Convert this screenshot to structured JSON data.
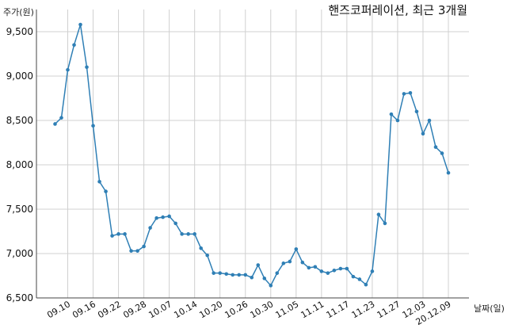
{
  "chart_data": {
    "type": "line",
    "title": "핸즈코퍼레이션, 최근 3개월",
    "ylabel": "주가(원)",
    "xlabel": "날짜(일)",
    "ylim": [
      6500,
      9750
    ],
    "yticks": [
      6500,
      7000,
      7500,
      8000,
      8500,
      9000,
      9500
    ],
    "ytick_labels": [
      "6,500",
      "7,000",
      "7,500",
      "8,000",
      "8,500",
      "9,000",
      "9,500"
    ],
    "xtick_labels": [
      "09.10",
      "09.16",
      "09.22",
      "09.28",
      "10.07",
      "10.14",
      "10.20",
      "10.26",
      "10.30",
      "11.05",
      "11.11",
      "11.17",
      "11.23",
      "11.27",
      "12.03",
      "20.12.09"
    ],
    "xtick_positions": [
      2,
      6,
      10,
      14,
      18,
      22,
      26,
      30,
      34,
      38,
      42,
      46,
      50,
      54,
      58,
      62
    ],
    "grid": true,
    "color": "#2f7fb5",
    "series": [
      {
        "values": [
          8460,
          8530,
          9070,
          9350,
          9580,
          9100,
          8440,
          7810,
          7700,
          7200,
          7220,
          7220,
          7030,
          7030,
          7080,
          7290,
          7400,
          7410,
          7420,
          7340,
          7220,
          7220,
          7220,
          7060,
          6980,
          6780,
          6780,
          6770,
          6760,
          6760,
          6760,
          6730,
          6870,
          6720,
          6640,
          6780,
          6890,
          6910,
          7050,
          6900,
          6840,
          6850,
          6800,
          6780,
          6810,
          6830,
          6830,
          6740,
          6710,
          6650,
          6800,
          7440,
          7340,
          8570,
          8500,
          8800,
          8810,
          8600,
          8350,
          8500,
          8200,
          8130,
          7910
        ]
      }
    ]
  }
}
